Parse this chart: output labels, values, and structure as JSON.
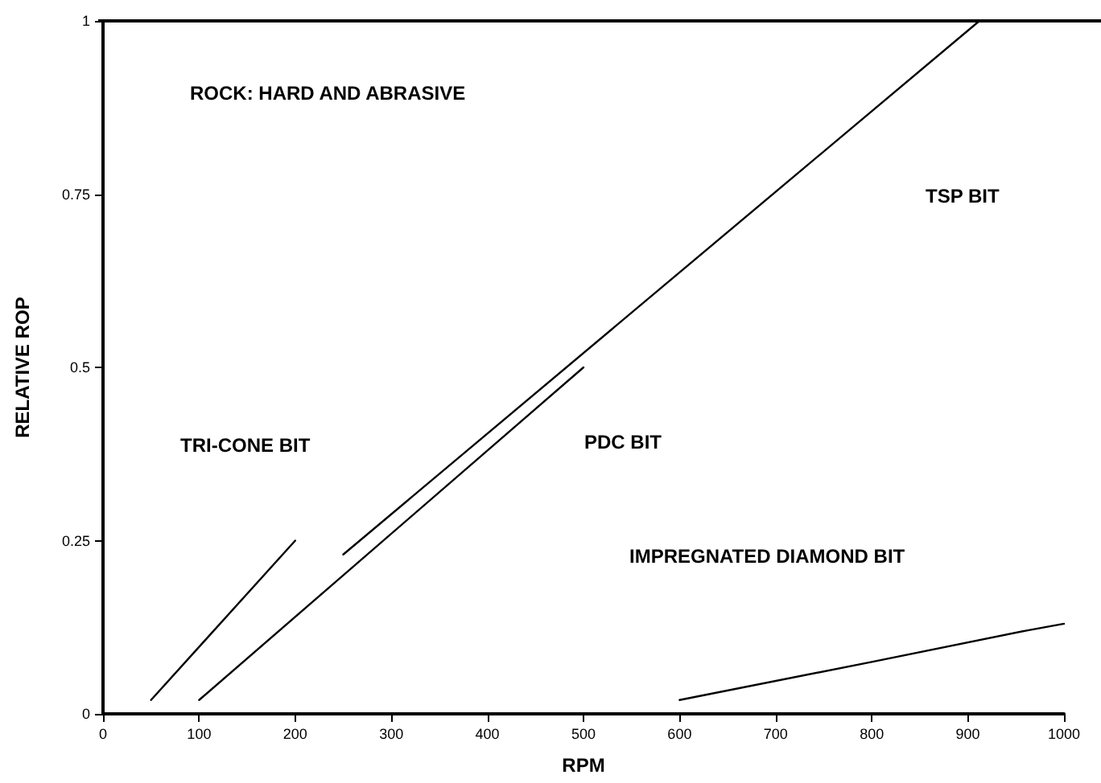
{
  "chart_data": {
    "type": "line",
    "xlabel": "RPM",
    "ylabel": "RELATIVE ROP",
    "xlim": [
      0,
      1000
    ],
    "xticks": [
      0,
      100,
      200,
      300,
      400,
      500,
      600,
      700,
      800,
      900,
      1000
    ],
    "ylim": [
      0,
      1
    ],
    "yticks": [
      0,
      0.25,
      0.5,
      0.75,
      1
    ],
    "grid": false,
    "marker": "none",
    "line_style": "solid",
    "series": [
      {
        "color": "#000000",
        "x": [
          50,
          200
        ],
        "values": [
          0.02,
          0.25
        ]
      },
      {
        "color": "#000000",
        "x": [
          100,
          500
        ],
        "values": [
          0.02,
          0.5
        ]
      },
      {
        "color": "#000000",
        "x": [
          250,
          912
        ],
        "values": [
          0.23,
          1
        ]
      },
      {
        "color": "#000000",
        "x": [
          600,
          800,
          960,
          1000
        ],
        "values": [
          0.02,
          0.075,
          0.12,
          0.13
        ]
      }
    ],
    "annotations": [
      "ROCK: HARD AND ABRASIVE",
      "TRI-CONE BIT",
      "PDC BIT",
      "TSP BIT",
      "IMPREGNATED DIAMOND BIT"
    ]
  }
}
